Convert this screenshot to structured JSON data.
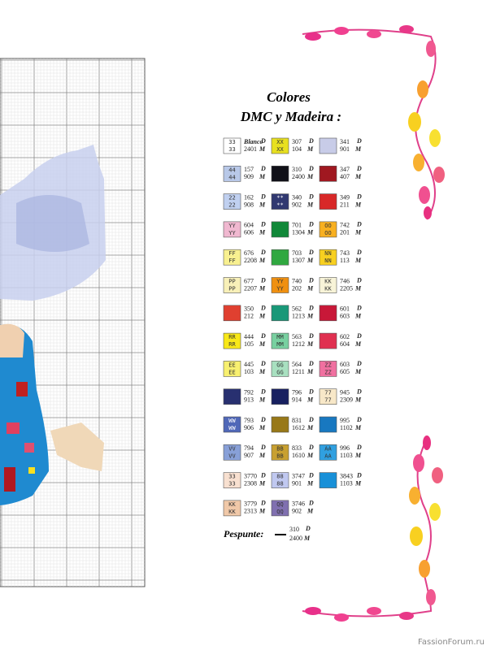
{
  "key": {
    "title": "Colores",
    "subtitle": "DMC y Madeira :",
    "dmc_mark": "D",
    "madeira_mark": "M",
    "rows": [
      [
        {
          "symbol": "33",
          "color": "#ffffff",
          "dmc": "Blanco",
          "madeira": "2401"
        },
        {
          "symbol": "XX",
          "color": "#e8e020",
          "dmc": "307",
          "madeira": "104"
        },
        {
          "color": "#c8cce8",
          "dmc": "341",
          "madeira": "901"
        }
      ],
      [
        {
          "symbol": "44",
          "color": "#b8c8e8",
          "dmc": "157",
          "madeira": "909"
        },
        {
          "color": "#101018",
          "dmc": "310",
          "madeira": "2400"
        },
        {
          "color": "#a01820",
          "dmc": "347",
          "madeira": "407"
        }
      ],
      [
        {
          "symbol": "22",
          "color": "#c0d0f0",
          "dmc": "162",
          "madeira": "908"
        },
        {
          "symbol": "**",
          "color": "#303870",
          "dmc": "340",
          "madeira": "902"
        },
        {
          "color": "#d82828",
          "dmc": "349",
          "madeira": "211"
        }
      ],
      [
        {
          "symbol": "YY",
          "color": "#f0b8d0",
          "dmc": "604",
          "madeira": "606"
        },
        {
          "color": "#108838",
          "dmc": "701",
          "madeira": "1304"
        },
        {
          "symbol": "OO",
          "color": "#f8b020",
          "dmc": "742",
          "madeira": "201"
        }
      ],
      [
        {
          "symbol": "FF",
          "color": "#f8f090",
          "dmc": "676",
          "madeira": "2208"
        },
        {
          "color": "#30a840",
          "dmc": "703",
          "madeira": "1307"
        },
        {
          "symbol": "NN",
          "color": "#f8d020",
          "dmc": "743",
          "madeira": "113"
        }
      ],
      [
        {
          "symbol": "PP",
          "color": "#f8f0b8",
          "dmc": "677",
          "madeira": "2207"
        },
        {
          "symbol": "YY",
          "color": "#f09010",
          "dmc": "740",
          "madeira": "202"
        },
        {
          "symbol": "KK",
          "color": "#f8f4d8",
          "dmc": "746",
          "madeira": "2205"
        }
      ],
      [
        {
          "color": "#e04030",
          "dmc": "350",
          "madeira": "212"
        },
        {
          "color": "#189878",
          "dmc": "562",
          "madeira": "1213"
        },
        {
          "color": "#c81838",
          "dmc": "601",
          "madeira": "603"
        }
      ],
      [
        {
          "symbol": "RR",
          "color": "#f8e818",
          "dmc": "444",
          "madeira": "105"
        },
        {
          "symbol": "MM",
          "color": "#78d0a0",
          "dmc": "563",
          "madeira": "1212"
        },
        {
          "color": "#e03050",
          "dmc": "602",
          "madeira": "604"
        }
      ],
      [
        {
          "symbol": "EE",
          "color": "#f8f070",
          "dmc": "445",
          "madeira": "103"
        },
        {
          "symbol": "GG",
          "color": "#a8e0c0",
          "dmc": "564",
          "madeira": "1211"
        },
        {
          "symbol": "ZZ",
          "color": "#f070a0",
          "dmc": "603",
          "madeira": "605"
        }
      ],
      [
        {
          "color": "#283070",
          "dmc": "792",
          "madeira": "913"
        },
        {
          "color": "#182060",
          "dmc": "796",
          "madeira": "914"
        },
        {
          "symbol": "77",
          "color": "#f8e8c8",
          "dmc": "945",
          "madeira": "2309"
        }
      ],
      [
        {
          "symbol": "WW",
          "color": "#5068b8",
          "dmc": "793",
          "madeira": "906"
        },
        {
          "color": "#987818",
          "dmc": "831",
          "madeira": "1612"
        },
        {
          "color": "#1878c0",
          "dmc": "995",
          "madeira": "1102"
        }
      ],
      [
        {
          "symbol": "VV",
          "color": "#88a0d8",
          "dmc": "794",
          "madeira": "907"
        },
        {
          "symbol": "BB",
          "color": "#c8a030",
          "dmc": "833",
          "madeira": "1610"
        },
        {
          "symbol": "AA",
          "color": "#30a0e0",
          "dmc": "996",
          "madeira": "1103"
        }
      ],
      [
        {
          "symbol": "33",
          "color": "#f8e0d0",
          "dmc": "3770",
          "madeira": "2308"
        },
        {
          "symbol": "88",
          "color": "#c0c8f0",
          "dmc": "3747",
          "madeira": "901"
        },
        {
          "color": "#1890d8",
          "dmc": "3843",
          "madeira": "1103"
        }
      ],
      [
        {
          "symbol": "KK",
          "color": "#f0c8a8",
          "dmc": "3779",
          "madeira": "2313"
        },
        {
          "symbol": "QQ",
          "color": "#8070b0",
          "dmc": "3746",
          "madeira": "902"
        }
      ]
    ],
    "backstitch": {
      "label": "Pespunte:",
      "dmc": "310",
      "madeira": "2400"
    }
  },
  "watermark": "FassionForum.ru"
}
